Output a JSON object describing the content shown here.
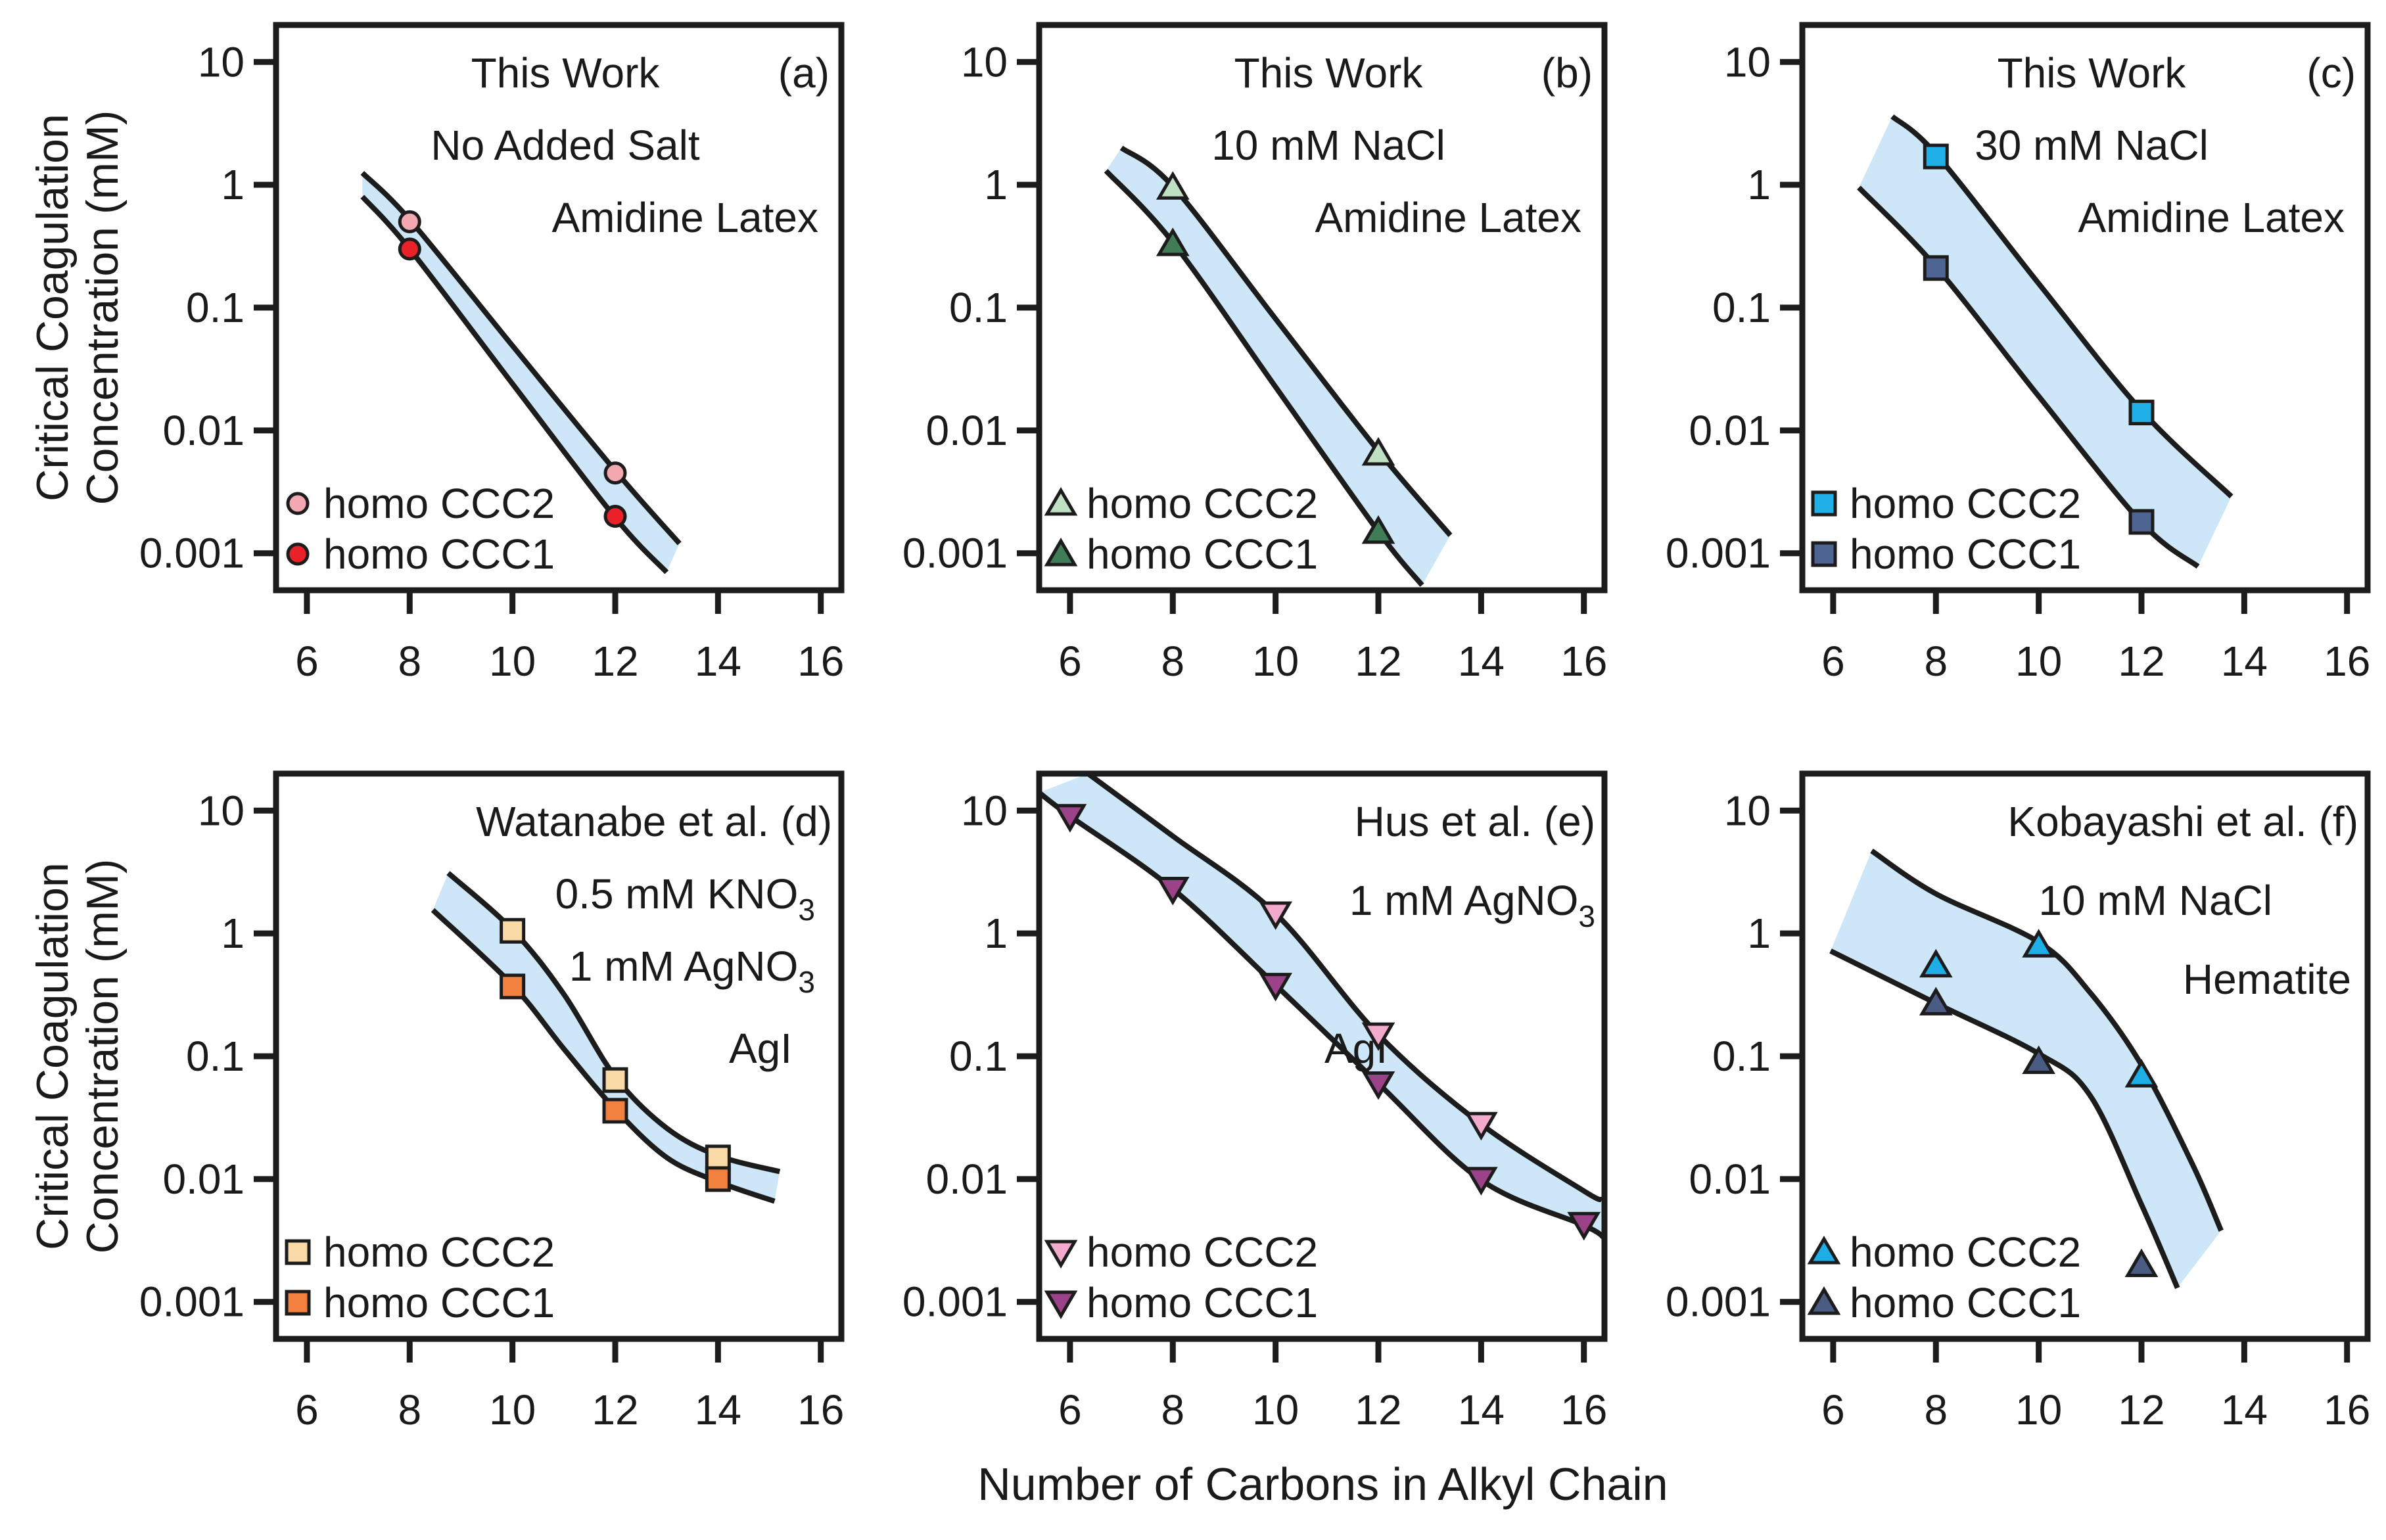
{
  "figure": {
    "background": "#ffffff",
    "text_color": "#1a1a1a",
    "axis_color": "#1c1c1c",
    "band_color": "#cee7f8",
    "curve_color": "#1c1c1c"
  },
  "chart_data": {
    "type": "scatter",
    "subtype": "log-y scatter with shaded confidence band between two fitted curves",
    "grid": "off",
    "legend_position": "lower-left inside each panel",
    "x_axis": {
      "label": "Number of Carbons in Alkyl Chain",
      "ticks": [
        6,
        8,
        10,
        12,
        14,
        16
      ],
      "range": [
        5.4,
        16.4
      ],
      "scale": "linear"
    },
    "y_axis": {
      "label": "Critical Coagulation Concentration (mM)",
      "label_lines": [
        "Critical Coagulation",
        "Concentration (mM)"
      ],
      "ticks": [
        {
          "value": 10,
          "label": "10"
        },
        {
          "value": 1,
          "label": "1"
        },
        {
          "value": 0.1,
          "label": "0.1"
        },
        {
          "value": 0.01,
          "label": "0.01"
        },
        {
          "value": 0.001,
          "label": "0.001"
        }
      ],
      "range": [
        0.0005,
        20
      ],
      "scale": "log"
    },
    "panels": [
      {
        "id": "a",
        "letter": "(a)",
        "annotation_lines": [
          "This Work",
          "No Added Salt",
          "Amidine Latex"
        ],
        "series": [
          {
            "name": "homo CCC2",
            "marker": "circle",
            "fill": "#f3a7b1",
            "points": [
              [
                8,
                0.5
              ],
              [
                12,
                0.0045
              ]
            ]
          },
          {
            "name": "homo CCC1",
            "marker": "circle",
            "fill": "#ea2128",
            "points": [
              [
                8,
                0.3
              ],
              [
                12,
                0.002
              ]
            ]
          }
        ],
        "band": {
          "upper": [
            [
              7.08,
              1.25
            ],
            [
              8,
              0.52
            ],
            [
              10,
              0.049
            ],
            [
              12,
              0.0047
            ],
            [
              13.25,
              0.0012
            ]
          ],
          "lower": [
            [
              7.08,
              0.8
            ],
            [
              8,
              0.3
            ],
            [
              10,
              0.024
            ],
            [
              12,
              0.00195
            ],
            [
              13.0,
              0.0007
            ]
          ]
        }
      },
      {
        "id": "b",
        "letter": "(b)",
        "annotation_lines": [
          "This Work",
          "10 mM NaCl",
          "Amidine Latex"
        ],
        "series": [
          {
            "name": "homo CCC2",
            "marker": "triangle-up",
            "fill": "#c0e0c4",
            "points": [
              [
                8,
                0.95
              ],
              [
                12,
                0.0065
              ]
            ]
          },
          {
            "name": "homo CCC1",
            "marker": "triangle-up",
            "fill": "#407d56",
            "points": [
              [
                8,
                0.33
              ],
              [
                12,
                0.0015
              ]
            ]
          }
        ],
        "band": {
          "upper": [
            [
              7.0,
              2.0
            ],
            [
              8,
              0.97
            ],
            [
              10,
              0.081
            ],
            [
              12,
              0.0068
            ],
            [
              13.4,
              0.0014
            ]
          ],
          "lower": [
            [
              6.7,
              1.3
            ],
            [
              8,
              0.34
            ],
            [
              10,
              0.0226
            ],
            [
              12,
              0.0015
            ],
            [
              12.85,
              0.00055
            ]
          ]
        }
      },
      {
        "id": "c",
        "letter": "(c)",
        "annotation_lines": [
          "This Work",
          "30 mM NaCl",
          "Amidine Latex"
        ],
        "series": [
          {
            "name": "homo CCC2",
            "marker": "square",
            "fill": "#20b0e8",
            "points": [
              [
                8,
                1.7
              ],
              [
                12,
                0.014
              ]
            ]
          },
          {
            "name": "homo CCC1",
            "marker": "square",
            "fill": "#4e6594",
            "points": [
              [
                8,
                0.21
              ],
              [
                12,
                0.0018
              ]
            ]
          }
        ],
        "band": {
          "upper": [
            [
              7.15,
              3.6
            ],
            [
              8,
              1.78
            ],
            [
              10,
              0.157
            ],
            [
              12,
              0.0145
            ],
            [
              13.75,
              0.0029
            ]
          ],
          "lower": [
            [
              6.5,
              0.95
            ],
            [
              8,
              0.215
            ],
            [
              10,
              0.019
            ],
            [
              12,
              0.00178
            ],
            [
              13.1,
              0.00078
            ]
          ]
        }
      },
      {
        "id": "d",
        "letter": "(d)",
        "annotation_lines": [
          "Watanabe et al.",
          "0.5 mM KNO_3",
          "1 mM AgNO_3",
          "AgI"
        ],
        "series": [
          {
            "name": "homo CCC2",
            "marker": "square",
            "fill": "#f9d9a6",
            "points": [
              [
                10,
                1.05
              ],
              [
                12,
                0.064
              ],
              [
                14,
                0.015
              ]
            ]
          },
          {
            "name": "homo CCC1",
            "marker": "square",
            "fill": "#f28140",
            "points": [
              [
                10,
                0.37
              ],
              [
                12,
                0.036
              ],
              [
                14,
                0.01
              ]
            ]
          }
        ],
        "band": {
          "upper": [
            [
              8.75,
              3.1
            ],
            [
              10,
              1.07
            ],
            [
              11,
              0.32
            ],
            [
              12,
              0.068
            ],
            [
              13,
              0.026
            ],
            [
              14,
              0.0155
            ],
            [
              15.2,
              0.0115
            ]
          ],
          "lower": [
            [
              8.45,
              1.55
            ],
            [
              10,
              0.38
            ],
            [
              11,
              0.115
            ],
            [
              12,
              0.037
            ],
            [
              13,
              0.015
            ],
            [
              14,
              0.0095
            ],
            [
              15.1,
              0.0066
            ]
          ]
        }
      },
      {
        "id": "e",
        "letter": "(e)",
        "annotation_lines": [
          "Hus et al.",
          "1 mM AgNO_3",
          "AgI"
        ],
        "series": [
          {
            "name": "homo CCC2",
            "marker": "triangle-down",
            "fill": "#f2aacd",
            "points": [
              [
                10,
                1.45
              ],
              [
                12,
                0.15
              ],
              [
                14,
                0.028
              ]
            ]
          },
          {
            "name": "homo CCC1",
            "marker": "triangle-down",
            "fill": "#9c4288",
            "points": [
              [
                6,
                9
              ],
              [
                8,
                2.3
              ],
              [
                10,
                0.38
              ],
              [
                12,
                0.06
              ],
              [
                14,
                0.01
              ],
              [
                16,
                0.0043
              ]
            ]
          }
        ],
        "band": {
          "upper": [
            [
              6.35,
              20
            ],
            [
              8,
              6.2
            ],
            [
              10,
              1.45
            ],
            [
              12,
              0.15
            ],
            [
              14,
              0.028
            ],
            [
              16,
              0.008
            ],
            [
              16.35,
              0.0068
            ]
          ],
          "lower": [
            [
              5.4,
              14
            ],
            [
              6,
              9
            ],
            [
              8,
              2.3
            ],
            [
              10,
              0.38
            ],
            [
              12,
              0.06
            ],
            [
              14,
              0.0098
            ],
            [
              16,
              0.0042
            ],
            [
              16.4,
              0.0033
            ]
          ]
        }
      },
      {
        "id": "f",
        "letter": "(f)",
        "annotation_lines": [
          "Kobayashi et al.",
          "10 mM NaCl",
          "Hematite"
        ],
        "series": [
          {
            "name": "homo CCC2",
            "marker": "triangle-up",
            "fill": "#1daee5",
            "points": [
              [
                8,
                0.55
              ],
              [
                10,
                0.8
              ],
              [
                12,
                0.07
              ]
            ]
          },
          {
            "name": "homo CCC1",
            "marker": "triangle-up",
            "fill": "#4a5c83",
            "points": [
              [
                8,
                0.27
              ],
              [
                10,
                0.09
              ],
              [
                12,
                0.002
              ]
            ]
          }
        ],
        "band": {
          "upper": [
            [
              6.75,
              4.7
            ],
            [
              8,
              2.1
            ],
            [
              10,
              0.85
            ],
            [
              11,
              0.33
            ],
            [
              12,
              0.085
            ],
            [
              13,
              0.013
            ],
            [
              13.55,
              0.0038
            ]
          ],
          "lower": [
            [
              5.95,
              0.72
            ],
            [
              8,
              0.27
            ],
            [
              10,
              0.105
            ],
            [
              11,
              0.048
            ],
            [
              12,
              0.0062
            ],
            [
              12.7,
              0.0013
            ]
          ]
        }
      }
    ]
  }
}
